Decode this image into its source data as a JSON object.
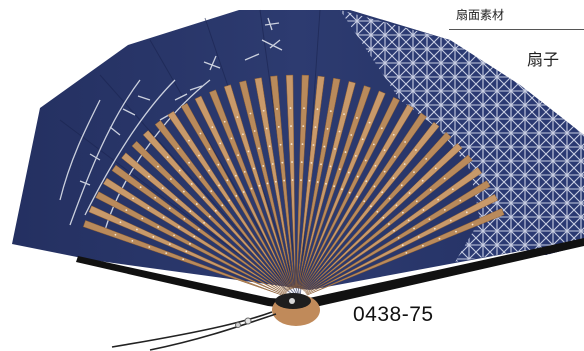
{
  "labels": {
    "fan_face": "扇面素材",
    "fan_frame": "扇子"
  },
  "product": {
    "code": "0438-75"
  },
  "colors": {
    "fan_leaf": "#2a3768",
    "rib_bamboo": "#c49566",
    "guard": "#111111"
  }
}
